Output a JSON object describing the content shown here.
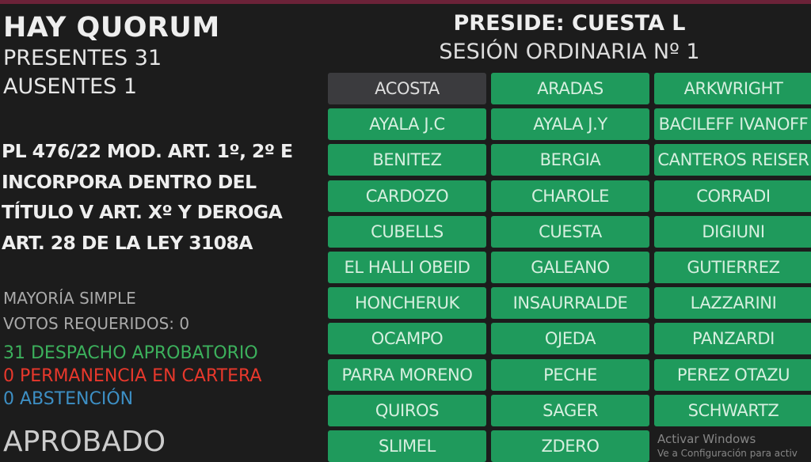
{
  "status": {
    "quorum": "HAY QUORUM",
    "presentes": "PRESENTES 31",
    "ausentes": "AUSENTES 1"
  },
  "bill": [
    "PL 476/22 MOD. ART. 1º, 2º E",
    "INCORPORA DENTRO DEL",
    "TÍTULO V ART. Xº Y DEROGA",
    "ART. 28 DE LA LEY 3108A"
  ],
  "majority": {
    "type": "MAYORÍA SIMPLE",
    "required": "VOTOS REQUERIDOS: 0"
  },
  "results": [
    {
      "text": "31 DESPACHO APROBATORIO",
      "color": "#3cb05c"
    },
    {
      "text": "0 PERMANENCIA EN CARTERA",
      "color": "#e8382c"
    },
    {
      "text": "0 ABSTENCIÓN",
      "color": "#3d8fc4"
    }
  ],
  "outcome": "APROBADO",
  "header": {
    "preside": "PRESIDE: CUESTA L",
    "sesion": "SESIÓN ORDINARIA Nº 1"
  },
  "colors": {
    "present": "#1f9a5c",
    "absent": "#3b3b3e",
    "topbar": "#6b2238"
  },
  "members": [
    {
      "name": "ACOSTA",
      "status": "absent"
    },
    {
      "name": "ARADAS",
      "status": "present"
    },
    {
      "name": "ARKWRIGHT",
      "status": "present"
    },
    {
      "name": "AYALA J.C",
      "status": "present"
    },
    {
      "name": "AYALA J.Y",
      "status": "present"
    },
    {
      "name": "BACILEFF IVANOFF",
      "status": "present"
    },
    {
      "name": "BENITEZ",
      "status": "present"
    },
    {
      "name": "BERGIA",
      "status": "present"
    },
    {
      "name": "CANTEROS REISER",
      "status": "present"
    },
    {
      "name": "CARDOZO",
      "status": "present"
    },
    {
      "name": "CHAROLE",
      "status": "present"
    },
    {
      "name": "CORRADI",
      "status": "present"
    },
    {
      "name": "CUBELLS",
      "status": "present"
    },
    {
      "name": "CUESTA",
      "status": "present"
    },
    {
      "name": "DIGIUNI",
      "status": "present"
    },
    {
      "name": "EL HALLI OBEID",
      "status": "present"
    },
    {
      "name": "GALEANO",
      "status": "present"
    },
    {
      "name": "GUTIERREZ",
      "status": "present"
    },
    {
      "name": "HONCHERUK",
      "status": "present"
    },
    {
      "name": "INSAURRALDE",
      "status": "present"
    },
    {
      "name": "LAZZARINI",
      "status": "present"
    },
    {
      "name": "OCAMPO",
      "status": "present"
    },
    {
      "name": "OJEDA",
      "status": "present"
    },
    {
      "name": "PANZARDI",
      "status": "present"
    },
    {
      "name": "PARRA MORENO",
      "status": "present"
    },
    {
      "name": "PECHE",
      "status": "present"
    },
    {
      "name": "PEREZ OTAZU",
      "status": "present"
    },
    {
      "name": "QUIROS",
      "status": "present"
    },
    {
      "name": "SAGER",
      "status": "present"
    },
    {
      "name": "SCHWARTZ",
      "status": "present"
    },
    {
      "name": "SLIMEL",
      "status": "present"
    },
    {
      "name": "ZDERO",
      "status": "present"
    }
  ],
  "watermark": {
    "line1": "Activar Windows",
    "line2": "Ve a Configuración para activ"
  }
}
